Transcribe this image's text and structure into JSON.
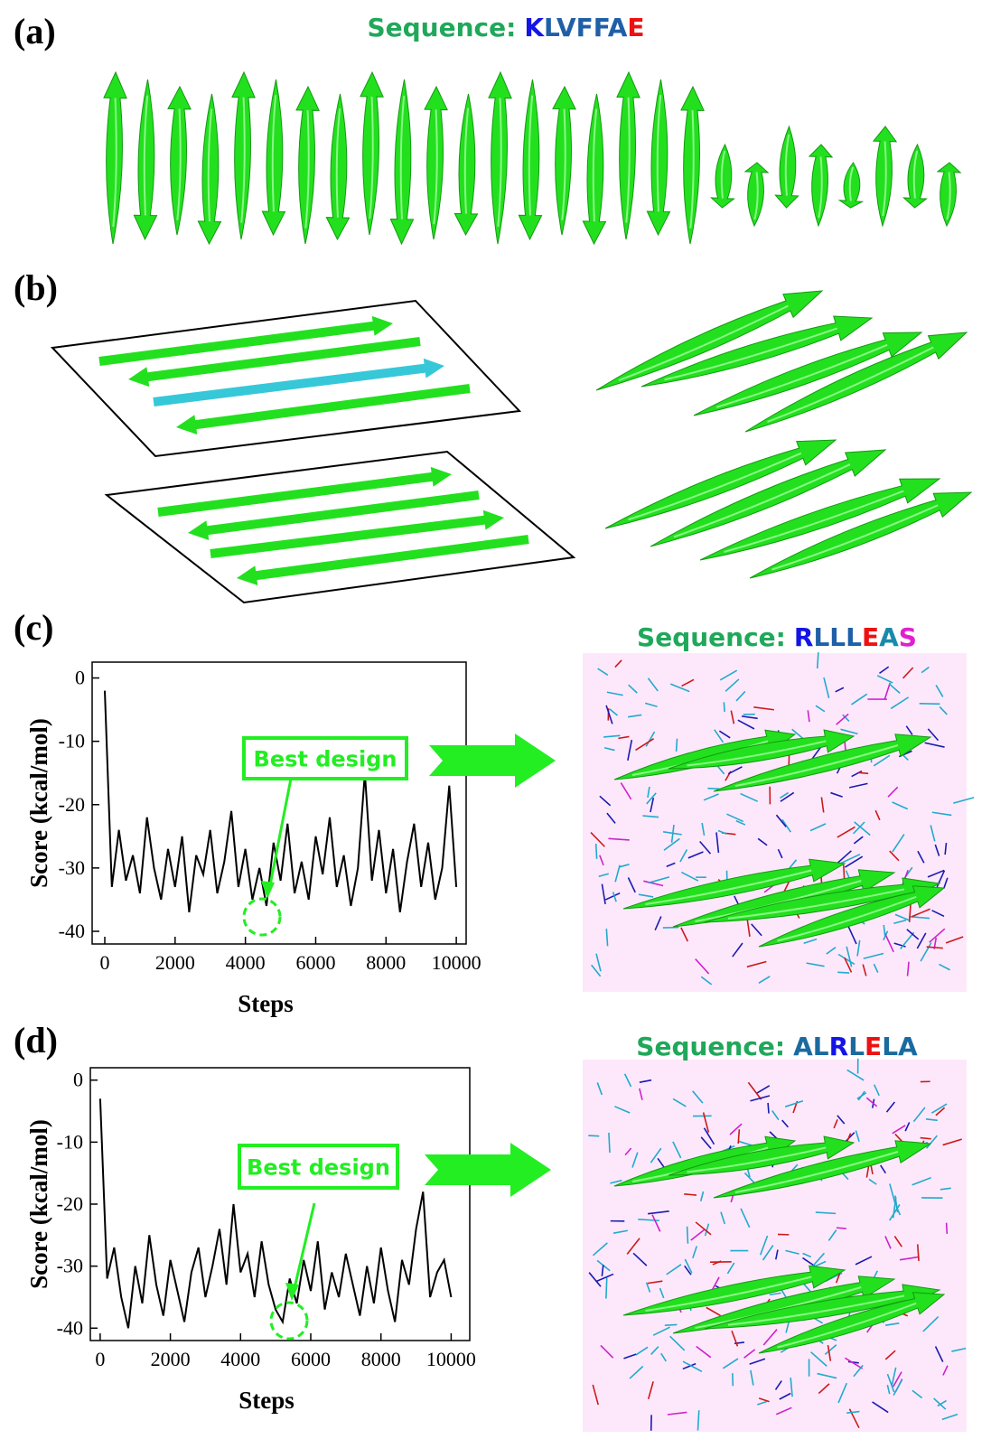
{
  "figure": {
    "panel_labels": [
      "(a)",
      "(b)",
      "(c)",
      "(d)"
    ],
    "sequences": [
      {
        "label": "Sequence:",
        "color": "#1fa85a",
        "residues": [
          {
            "text": "K",
            "color": "#1414e6"
          },
          {
            "text": "LVFFA",
            "color": "#1f5fa8"
          },
          {
            "text": "E",
            "color": "#ee1111"
          }
        ]
      },
      {
        "label": "Sequence:",
        "color": "#1fa85a",
        "residues": [
          {
            "text": "R",
            "color": "#1414e6"
          },
          {
            "text": "LLL",
            "color": "#1f5fa8"
          },
          {
            "text": "E",
            "color": "#ee1111"
          },
          {
            "text": "A",
            "color": "#1a8aaa"
          },
          {
            "text": "S",
            "color": "#e020d0"
          }
        ]
      },
      {
        "label": "Sequence:",
        "color": "#1fa85a",
        "residues": [
          {
            "text": "AL",
            "color": "#1a6aa0"
          },
          {
            "text": "R",
            "color": "#1414e6"
          },
          {
            "text": "L",
            "color": "#1a6aa0"
          },
          {
            "text": "E",
            "color": "#ee1111"
          },
          {
            "text": "LA",
            "color": "#1a6aa0"
          }
        ]
      }
    ]
  },
  "chart_data": [
    {
      "type": "line",
      "y_label": "Score (kcal/mol)",
      "x_label": "Steps",
      "annotation": "Best design",
      "annotation_color": "#22ee22",
      "color": "#000000",
      "xlim": [
        -360,
        10280
      ],
      "ylim": [
        -42,
        2.5
      ],
      "xticks": [
        0,
        2000,
        4000,
        6000,
        8000,
        10000
      ],
      "yticks": [
        0,
        -10,
        -20,
        -30,
        -40
      ],
      "x": [
        0,
        200,
        400,
        600,
        800,
        1000,
        1200,
        1400,
        1600,
        1800,
        2000,
        2200,
        2400,
        2600,
        2800,
        3000,
        3200,
        3400,
        3600,
        3800,
        4000,
        4200,
        4400,
        4600,
        4800,
        5000,
        5200,
        5400,
        5600,
        5800,
        6000,
        6200,
        6400,
        6600,
        6800,
        7000,
        7200,
        7400,
        7600,
        7800,
        8000,
        8200,
        8400,
        8600,
        8800,
        9000,
        9200,
        9400,
        9600,
        9800,
        10000
      ],
      "values": [
        -2,
        -33,
        -24,
        -32,
        -28,
        -34,
        -22,
        -30,
        -35,
        -27,
        -33,
        -25,
        -37,
        -28,
        -31,
        -24,
        -34,
        -29,
        -21,
        -33,
        -27,
        -35,
        -30,
        -36,
        -26,
        -32,
        -23,
        -34,
        -29,
        -35,
        -25,
        -31,
        -22,
        -33,
        -28,
        -36,
        -30,
        -15,
        -32,
        -24,
        -34,
        -27,
        -37,
        -29,
        -23,
        -33,
        -26,
        -35,
        -30,
        -17,
        -33
      ]
    },
    {
      "type": "line",
      "y_label": "Score (kcal/mol)",
      "x_label": "Steps",
      "annotation": "Best design",
      "annotation_color": "#22ee22",
      "color": "#000000",
      "xlim": [
        -280,
        10530
      ],
      "ylim": [
        -42,
        2
      ],
      "xticks": [
        0,
        2000,
        4000,
        6000,
        8000,
        10000
      ],
      "yticks": [
        0,
        -10,
        -20,
        -30,
        -40
      ],
      "x": [
        0,
        200,
        400,
        600,
        800,
        1000,
        1200,
        1400,
        1600,
        1800,
        2000,
        2200,
        2400,
        2600,
        2800,
        3000,
        3200,
        3400,
        3600,
        3800,
        4000,
        4200,
        4400,
        4600,
        4800,
        5000,
        5200,
        5400,
        5600,
        5800,
        6000,
        6200,
        6400,
        6600,
        6800,
        7000,
        7200,
        7400,
        7600,
        7800,
        8000,
        8200,
        8400,
        8600,
        8800,
        9000,
        9200,
        9400,
        9600,
        9800,
        10000
      ],
      "values": [
        -3,
        -32,
        -27,
        -35,
        -40,
        -30,
        -36,
        -25,
        -33,
        -38,
        -29,
        -34,
        -39,
        -31,
        -27,
        -35,
        -30,
        -24,
        -33,
        -20,
        -31,
        -28,
        -35,
        -26,
        -33,
        -37,
        -39,
        -32,
        -36,
        -29,
        -34,
        -26,
        -37,
        -31,
        -35,
        -28,
        -33,
        -38,
        -30,
        -36,
        -27,
        -34,
        -39,
        -29,
        -33,
        -24,
        -18,
        -35,
        -31,
        -29,
        -35
      ]
    }
  ]
}
